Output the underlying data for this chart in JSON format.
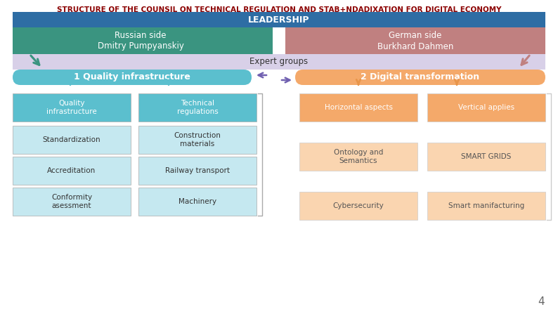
{
  "title": "STRUCTURE OF THE COUNSIL ON TECHNICAL REGULATION AND STAB+NDADIXATION FOR DIGITAL ECONOMY",
  "title_color": "#8B0000",
  "title_fontsize": 7.5,
  "bg_color": "#FFFFFF",
  "leadership_label": "LEADERSHIP",
  "leadership_bg": "#2E6DA4",
  "leadership_text_color": "#FFFFFF",
  "russian_label": "Russian side\nDmitry Pumpyanskiy",
  "russian_bg": "#3A9480",
  "german_label": "German side\nBurkhard Dahmen",
  "german_bg": "#C08080",
  "expert_label": "Expert groups",
  "expert_bg": "#D8D0E8",
  "q1_label": "1 Quality infrastructure",
  "q1_bg": "#5BBFCE",
  "q2_label": "2 Digital transformation",
  "q2_bg": "#F4A96A",
  "left_col1": [
    "Quality\ninfrastructure",
    "Standardization",
    "Accreditation",
    "Conformity\nasessment"
  ],
  "left_col2": [
    "Technical\nregulations",
    "Construction\nmaterials",
    "Railway transport",
    "Machinery"
  ],
  "left_col1_bg0": "#5BBFCE",
  "left_col1_bg": "#C5E8F0",
  "left_col2_bg0": "#5BBFCE",
  "left_col2_bg": "#C5E8F0",
  "right_col1": [
    "Horizontal aspects",
    "Ontology and\nSemantics",
    "Cybersecurity"
  ],
  "right_col2": [
    "Vertical applies",
    "SMART GRIDS",
    "Smart manifacturing"
  ],
  "right_col1_bg0": "#F4A96A",
  "right_col1_bg": "#FAD5B0",
  "right_col2_bg0": "#F4A96A",
  "right_col2_bg": "#FAD5B0",
  "page_num": "4",
  "arrow_green": "#3A9480",
  "arrow_red": "#C08080",
  "arrow_purple": "#7060B0",
  "arrow_teal": "#5BBFCE",
  "arrow_orange": "#E8954A"
}
